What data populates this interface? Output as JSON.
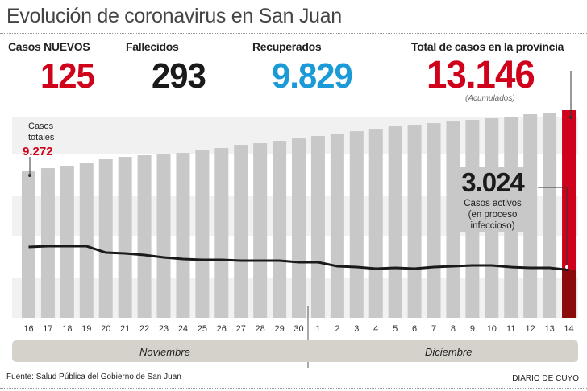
{
  "header": {
    "title": "Evolución de coronavirus en San Juan"
  },
  "stats": [
    {
      "label": "Casos NUEVOS",
      "value": "125",
      "color": "#d0021b"
    },
    {
      "label": "Fallecidos",
      "value": "293",
      "color": "#1a1a1a"
    },
    {
      "label": "Recuperados",
      "value": "9.829",
      "color": "#1a9ad6"
    },
    {
      "label": "Total de casos en la provincia",
      "value": "13.146",
      "color": "#d0021b",
      "note": "(Acumulados)"
    }
  ],
  "annotations": {
    "first_label_line1": "Casos",
    "first_label_line2": "totales",
    "first_value": "9.272",
    "active_value": "3.024",
    "active_line1": "Casos activos",
    "active_line2": "(en proceso",
    "active_line3": "infeccioso)"
  },
  "chart_data": {
    "type": "bar",
    "categories": [
      "16",
      "17",
      "18",
      "19",
      "20",
      "21",
      "22",
      "23",
      "24",
      "25",
      "26",
      "27",
      "28",
      "29",
      "30",
      "1",
      "2",
      "3",
      "4",
      "5",
      "6",
      "7",
      "8",
      "9",
      "10",
      "11",
      "12",
      "13",
      "14"
    ],
    "months": [
      "Noviembre",
      "Diciembre"
    ],
    "series": [
      {
        "type": "bar",
        "color": "#c8c8c8",
        "highlight_color": "#d0021b",
        "values": [
          9272,
          9475,
          9628,
          9832,
          10036,
          10189,
          10290,
          10341,
          10443,
          10596,
          10749,
          10953,
          11055,
          11208,
          11360,
          11513,
          11666,
          11819,
          11972,
          12124,
          12226,
          12328,
          12430,
          12532,
          12634,
          12736,
          12889,
          12991,
          13146
        ]
      },
      {
        "type": "line",
        "color": "#1a1a1a",
        "highlight_color": "#8b0a0a",
        "values": [
          4483,
          4534,
          4534,
          4534,
          4126,
          4075,
          3974,
          3821,
          3719,
          3668,
          3668,
          3617,
          3617,
          3617,
          3515,
          3515,
          3260,
          3209,
          3107,
          3158,
          3107,
          3209,
          3260,
          3311,
          3311,
          3209,
          3158,
          3158,
          3024
        ]
      }
    ],
    "ylim": [
      0,
      13146
    ],
    "grid": "alternating horizontal bands"
  },
  "footer": {
    "source": "Fuente: Salud Pública del Gobierno de San Juan",
    "brand": "DIARIO DE CUYO"
  }
}
